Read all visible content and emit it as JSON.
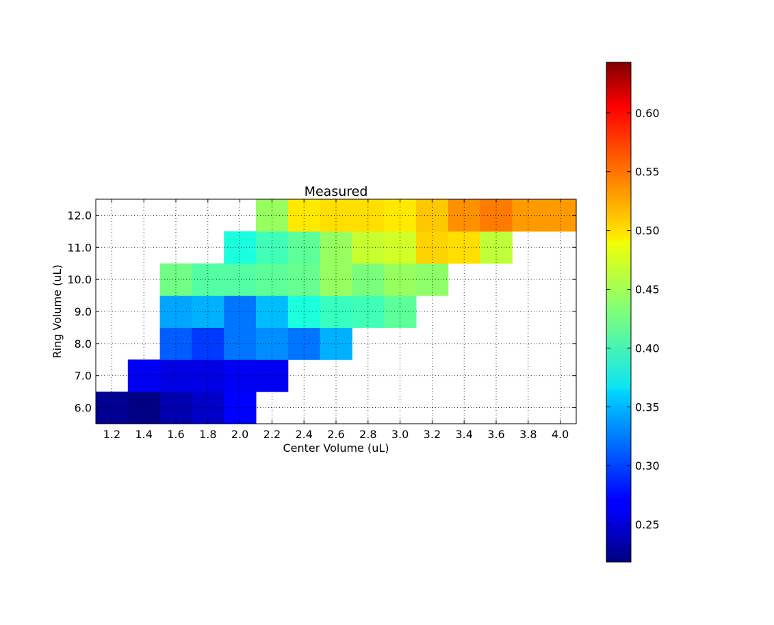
{
  "chart_data": {
    "type": "heatmap",
    "title": "Measured",
    "xlabel": "Center Volume (uL)",
    "ylabel": "Ring Volume (uL)",
    "x": [
      1.2,
      1.4,
      1.6,
      1.8,
      2.0,
      2.2,
      2.4,
      2.6,
      2.8,
      3.0,
      3.2,
      3.4,
      3.6,
      3.8,
      4.0
    ],
    "y": [
      6.0,
      7.0,
      8.0,
      9.0,
      10.0,
      11.0,
      12.0
    ],
    "x_ticks": [
      "1.2",
      "1.4",
      "1.6",
      "1.8",
      "2.0",
      "2.2",
      "2.4",
      "2.6",
      "2.8",
      "3.0",
      "3.2",
      "3.4",
      "3.6",
      "3.8",
      "4.0"
    ],
    "y_ticks": [
      "6.0",
      "7.0",
      "8.0",
      "9.0",
      "10.0",
      "11.0",
      "12.0"
    ],
    "xlim": [
      1.1,
      4.1
    ],
    "ylim": [
      5.5,
      12.5
    ],
    "grid": true,
    "colormap": "jet",
    "values": [
      [
        0.225,
        0.22,
        0.235,
        0.245,
        0.265,
        null,
        null,
        null,
        null,
        null,
        null,
        null,
        null,
        null,
        null
      ],
      [
        null,
        0.26,
        0.255,
        0.255,
        0.26,
        0.26,
        null,
        null,
        null,
        null,
        null,
        null,
        null,
        null,
        null
      ],
      [
        null,
        null,
        0.31,
        0.295,
        0.32,
        0.33,
        0.32,
        0.345,
        null,
        null,
        null,
        null,
        null,
        null,
        null
      ],
      [
        null,
        null,
        0.34,
        0.345,
        0.32,
        0.35,
        0.38,
        0.395,
        0.4,
        0.415,
        null,
        null,
        null,
        null,
        null
      ],
      [
        null,
        null,
        0.425,
        0.41,
        0.41,
        0.415,
        0.42,
        0.445,
        0.43,
        0.445,
        0.44,
        null,
        null,
        null,
        null
      ],
      [
        null,
        null,
        null,
        null,
        0.38,
        0.4,
        0.415,
        0.445,
        0.47,
        0.475,
        0.51,
        0.505,
        0.465,
        null,
        null
      ],
      [
        null,
        null,
        null,
        null,
        null,
        0.445,
        0.5,
        0.505,
        0.505,
        0.5,
        0.515,
        0.54,
        0.55,
        0.535,
        0.535
      ]
    ],
    "colorbar": {
      "vmin": 0.218,
      "vmax": 0.643,
      "ticks": [
        0.25,
        0.3,
        0.35,
        0.4,
        0.45,
        0.5,
        0.55,
        0.6
      ],
      "tick_labels": [
        "0.25",
        "0.30",
        "0.35",
        "0.40",
        "0.45",
        "0.50",
        "0.55",
        "0.60"
      ]
    }
  }
}
